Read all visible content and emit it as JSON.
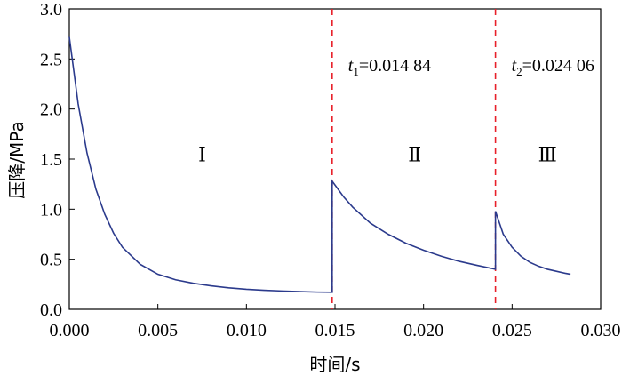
{
  "chart_data": {
    "type": "line",
    "title": "",
    "xlabel": "时间/s",
    "ylabel": "压降/MPa",
    "xlim": [
      0,
      0.03
    ],
    "ylim": [
      0,
      3.0
    ],
    "x_ticks": [
      "0.000",
      "0.005",
      "0.010",
      "0.015",
      "0.020",
      "0.025",
      "0.030"
    ],
    "y_ticks": [
      "0.0",
      "0.5",
      "1.0",
      "1.5",
      "2.0",
      "2.5",
      "3.0"
    ],
    "grid": false,
    "legend": "none",
    "colors": {
      "series": "#2b3a8c",
      "marker": "#e8202a"
    },
    "series": [
      {
        "x": [
          0.0,
          0.0005,
          0.001,
          0.0015,
          0.002,
          0.0025,
          0.003,
          0.004,
          0.005,
          0.006,
          0.007,
          0.008,
          0.009,
          0.01,
          0.011,
          0.012,
          0.013,
          0.014,
          0.01484,
          0.01484,
          0.0155,
          0.016,
          0.017,
          0.018,
          0.019,
          0.02,
          0.021,
          0.022,
          0.023,
          0.02406,
          0.02406,
          0.0245,
          0.025,
          0.0255,
          0.026,
          0.0265,
          0.027,
          0.0275,
          0.028,
          0.0283
        ],
        "y": [
          2.72,
          2.05,
          1.56,
          1.2,
          0.95,
          0.76,
          0.62,
          0.45,
          0.35,
          0.295,
          0.26,
          0.235,
          0.215,
          0.2,
          0.19,
          0.183,
          0.177,
          0.172,
          0.17,
          1.28,
          1.12,
          1.02,
          0.86,
          0.75,
          0.66,
          0.59,
          0.53,
          0.48,
          0.44,
          0.4,
          0.98,
          0.75,
          0.62,
          0.53,
          0.47,
          0.43,
          0.4,
          0.38,
          0.36,
          0.35
        ]
      }
    ],
    "markers": [
      {
        "x": 0.01484,
        "label_var": "t",
        "label_sub": "1",
        "label_value": "=0.014 84"
      },
      {
        "x": 0.02406,
        "label_var": "t",
        "label_sub": "2",
        "label_value": "=0.024 06"
      }
    ],
    "stage_labels": [
      {
        "text": "Ⅰ",
        "x": 0.0075,
        "y": 1.55
      },
      {
        "text": "Ⅱ",
        "x": 0.0195,
        "y": 1.55
      },
      {
        "text": "Ⅲ",
        "x": 0.027,
        "y": 1.55
      }
    ]
  }
}
